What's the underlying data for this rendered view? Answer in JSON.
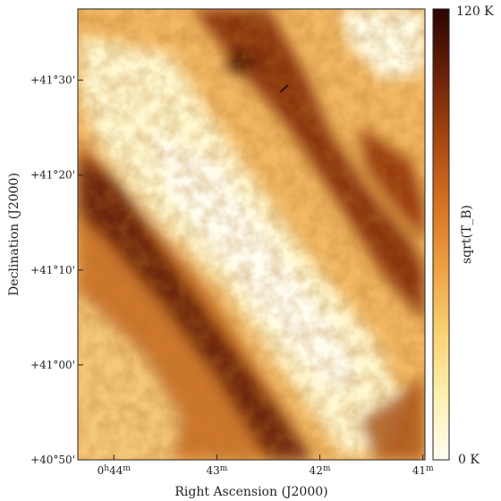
{
  "chart_data": {
    "type": "heatmap",
    "xlabel": "Right Ascension (J2000)",
    "ylabel": "Declination (J2000)",
    "x_ticks": [
      {
        "label": "0h44m",
        "ra_min": 44
      },
      {
        "label": "43m",
        "ra_min": 43
      },
      {
        "label": "42m",
        "ra_min": 42
      },
      {
        "label": "41m",
        "ra_min": 41
      }
    ],
    "y_ticks": [
      {
        "label": "+40°50'",
        "dec_arcmin": 2450
      },
      {
        "label": "+41°00'",
        "dec_arcmin": 2460
      },
      {
        "label": "+41°10'",
        "dec_arcmin": 2470
      },
      {
        "label": "+41°20'",
        "dec_arcmin": 2480
      },
      {
        "label": "+41°30'",
        "dec_arcmin": 2490
      }
    ],
    "xlim": [
      44.35,
      40.98
    ],
    "ylim": [
      2450,
      2497.5
    ],
    "colorbar": {
      "label": "sqrt(T_B)",
      "min_label": "0 K",
      "max_label": "120 K",
      "range": [
        0,
        120
      ],
      "colors": [
        "#fffdf0",
        "#fdf0b0",
        "#f9d070",
        "#eea040",
        "#d77020",
        "#a64510",
        "#6a2008",
        "#2a0500"
      ]
    }
  }
}
